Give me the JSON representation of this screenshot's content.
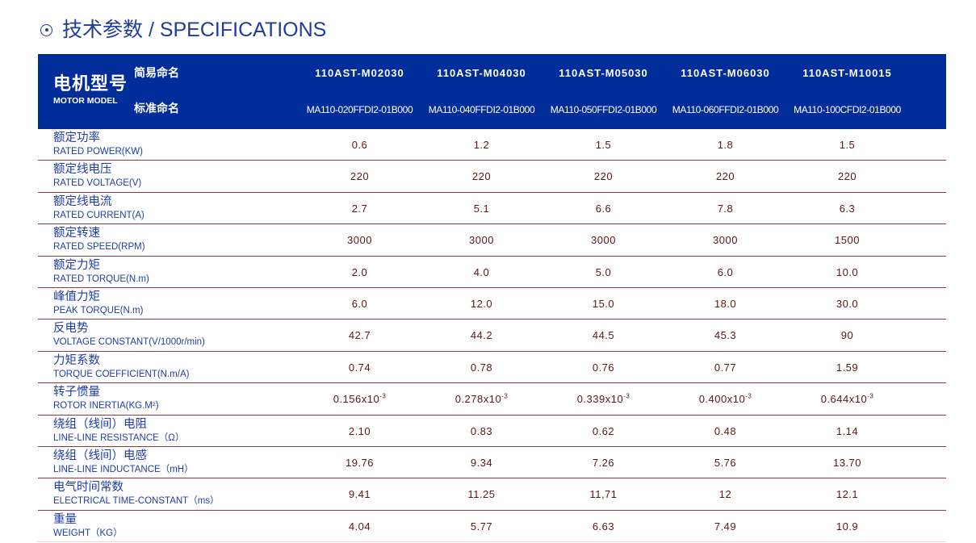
{
  "title": {
    "icon": "circle-dot-icon",
    "text": "技术参数 / SPECIFICATIONS"
  },
  "colors": {
    "header_bg": "#002d99",
    "label_text": "#1f3ca8",
    "value_text": "#5c1616",
    "row_divider": "#8e3b40"
  },
  "header": {
    "model_cn": "电机型号",
    "model_en": "MOTOR MODEL",
    "short_label": "简易命名",
    "full_label": "标准命名",
    "short_names": [
      "110AST-M02030",
      "110AST-M04030",
      "110AST-M05030",
      "110AST-M06030",
      "110AST-M10015"
    ],
    "full_names": [
      "MA110-020FFDI2-01B000",
      "MA110-040FFDI2-01B000",
      "MA110-050FFDI2-01B000",
      "MA110-060FFDI2-01B000",
      "MA110-100CFDI2-01B000"
    ]
  },
  "rows": [
    {
      "cn": "额定功率",
      "en": "RATED POWER(KW)",
      "values": [
        "0.6",
        "1.2",
        "1.5",
        "1.8",
        "1.5"
      ]
    },
    {
      "cn": "额定线电压",
      "en": "RATED VOLTAGE(V)",
      "values": [
        "220",
        "220",
        "220",
        "220",
        "220"
      ]
    },
    {
      "cn": "额定线电流",
      "en": "RATED CURRENT(A)",
      "values": [
        "2.7",
        "5.1",
        "6.6",
        "7.8",
        "6.3"
      ]
    },
    {
      "cn": "额定转速",
      "en": "RATED SPEED(RPM)",
      "values": [
        "3000",
        "3000",
        "3000",
        "3000",
        "1500"
      ]
    },
    {
      "cn": "额定力矩",
      "en": "RATED TORQUE(N.m)",
      "values": [
        "2.0",
        "4.0",
        "5.0",
        "6.0",
        "10.0"
      ]
    },
    {
      "cn": "峰值力矩",
      "en": "PEAK TORQUE(N.m)",
      "values": [
        "6.0",
        "12.0",
        "15.0",
        "18.0",
        "30.0"
      ]
    },
    {
      "cn": "反电势",
      "en": "VOLTAGE CONSTANT(V/1000r/min)",
      "values": [
        "42.7",
        "44.2",
        "44.5",
        "45.3",
        "90"
      ]
    },
    {
      "cn": "力矩系数",
      "en": "TORQUE COEFFICIENT(N.m/A)",
      "values": [
        "0.74",
        "0.78",
        "0.76",
        "0.77",
        "1.59"
      ]
    },
    {
      "cn": "转子惯量",
      "en": "ROTOR INERTIA(KG.M²)",
      "values": [
        "0.156x10",
        "0.278x10",
        "0.339x10",
        "0.400x10",
        "0.644x10"
      ],
      "exponent": "-3"
    },
    {
      "cn": "绕组（线间）电阻",
      "en": "LINE-LINE RESISTANCE（Ω）",
      "values": [
        "2.10",
        "0.83",
        "0.62",
        "0.48",
        "1.14"
      ]
    },
    {
      "cn": "绕组（线间）电感",
      "en": "LINE-LINE INDUCTANCE（mH）",
      "values": [
        "19.76",
        "9.34",
        "7.26",
        "5.76",
        "13.70"
      ]
    },
    {
      "cn": "电气时间常数",
      "en": "ELECTRICAL TIME-CONSTANT（ms）",
      "values": [
        "9.41",
        "11.25",
        "11,71",
        "12",
        "12.1"
      ]
    },
    {
      "cn": "重量",
      "en": "WEIGHT（KG）",
      "values": [
        "4.04",
        "5.77",
        "6.63",
        "7.49",
        "10.9"
      ]
    }
  ]
}
